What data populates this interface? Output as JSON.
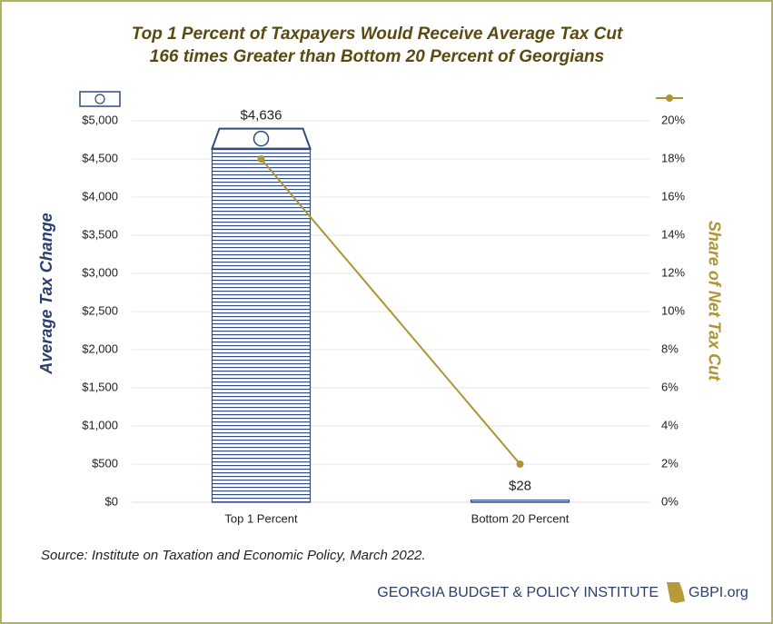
{
  "chart_data": {
    "type": "bar",
    "title": [
      "Top 1 Percent of Taxpayers Would Receive Average Tax Cut",
      "166 times Greater than Bottom 20 Percent of Georgians"
    ],
    "categories": [
      "Top 1 Percent",
      "Bottom 20 Percent"
    ],
    "series": [
      {
        "type": "bar",
        "color": "#2f4a80",
        "values": [
          4636,
          28
        ],
        "value_labels": [
          "$4,636",
          "$28"
        ]
      },
      {
        "type": "line",
        "axis": "y2",
        "color": "#ad9632",
        "values": [
          18,
          2
        ]
      }
    ],
    "ylabel": "Average Tax Change",
    "y2label": "Share of Net Tax Cut",
    "ylim": [
      0,
      5000
    ],
    "yticks": [
      {
        "value": 0,
        "label": "$0"
      },
      {
        "value": 500,
        "label": "$500"
      },
      {
        "value": 1000,
        "label": "$1,000"
      },
      {
        "value": 1500,
        "label": "$1,500"
      },
      {
        "value": 2000,
        "label": "$2,000"
      },
      {
        "value": 2500,
        "label": "$2,500"
      },
      {
        "value": 3000,
        "label": "$3,000"
      },
      {
        "value": 3500,
        "label": "$3,500"
      },
      {
        "value": 4000,
        "label": "$4,000"
      },
      {
        "value": 4500,
        "label": "$4,500"
      },
      {
        "value": 5000,
        "label": "$5,000"
      }
    ],
    "y2lim": [
      0,
      20
    ],
    "y2ticks": [
      {
        "value": 0,
        "label": "0%"
      },
      {
        "value": 2,
        "label": "2%"
      },
      {
        "value": 4,
        "label": "4%"
      },
      {
        "value": 6,
        "label": "6%"
      },
      {
        "value": 8,
        "label": "8%"
      },
      {
        "value": 10,
        "label": "10%"
      },
      {
        "value": 12,
        "label": "12%"
      },
      {
        "value": 14,
        "label": "14%"
      },
      {
        "value": 16,
        "label": "16%"
      },
      {
        "value": 18,
        "label": "18%"
      },
      {
        "value": 20,
        "label": "20%"
      }
    ],
    "grid": true
  },
  "source": "Source: Institute on Taxation and Economic Policy, March 2022.",
  "footer": {
    "org": "GEORGIA BUDGET & POLICY INSTITUTE",
    "site": "GBPI.org"
  }
}
